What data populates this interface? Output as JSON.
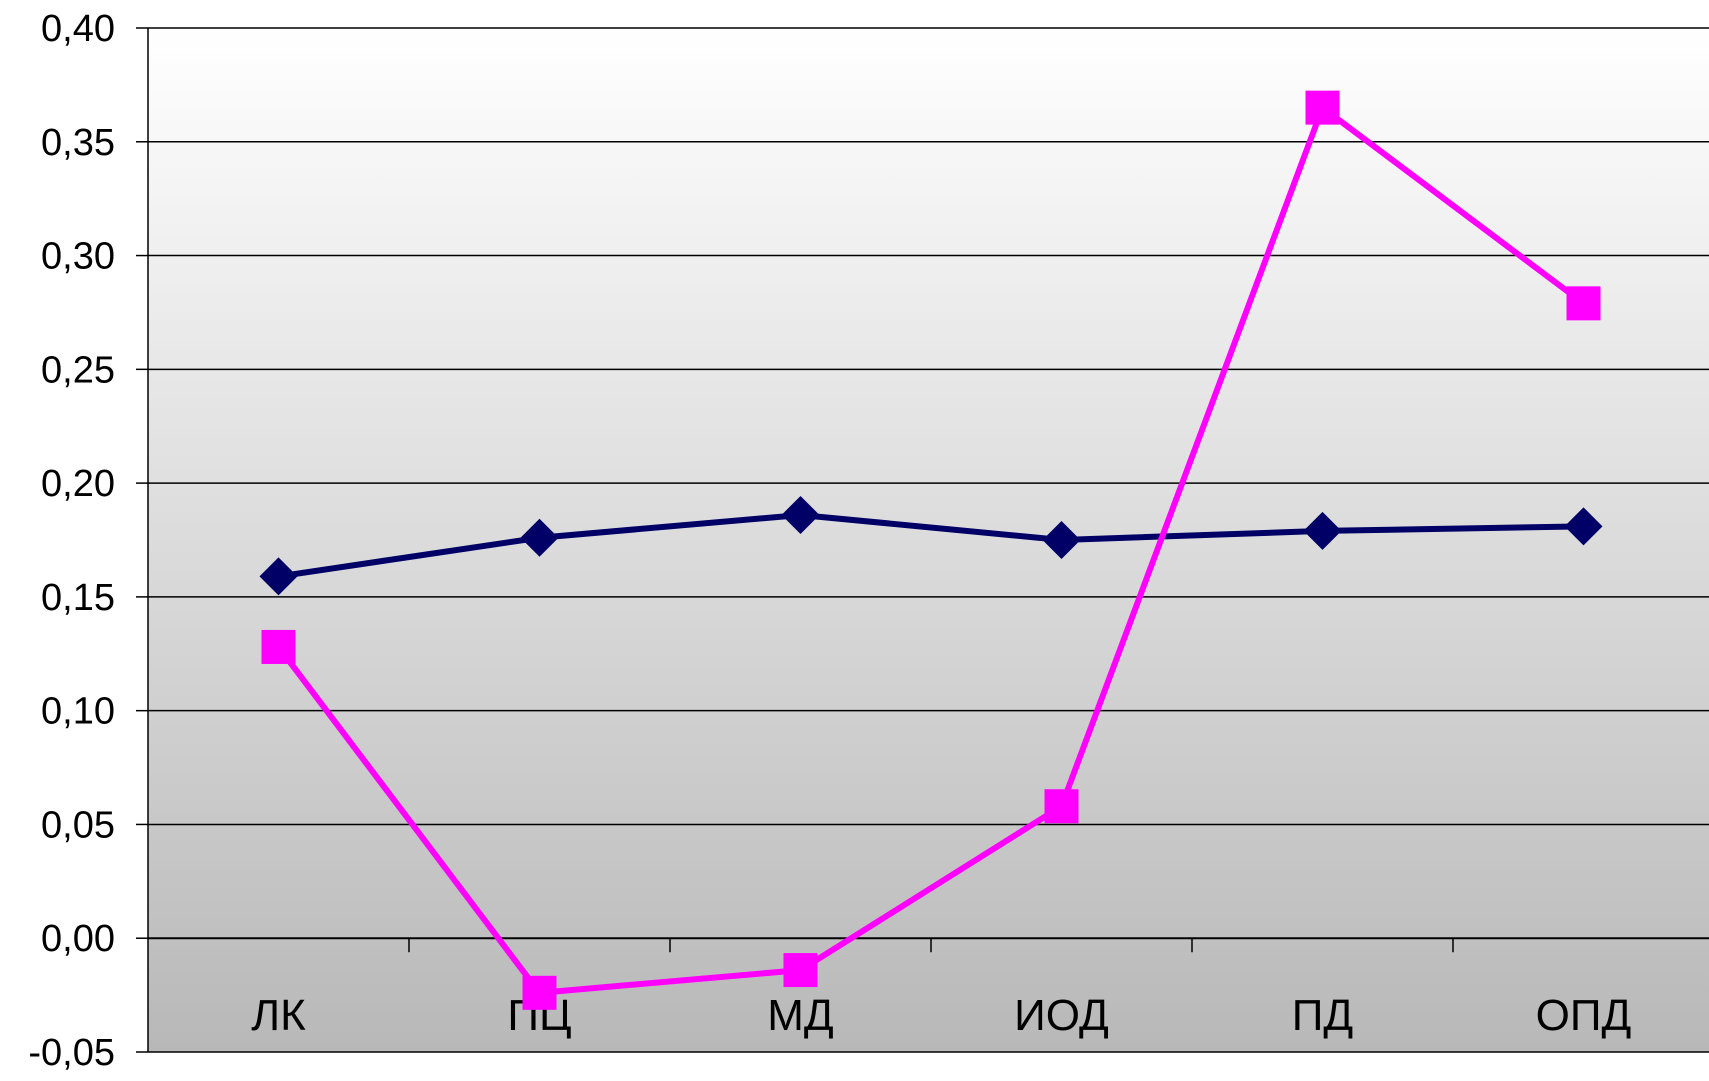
{
  "chart_data": {
    "type": "line",
    "title": "",
    "xlabel": "",
    "ylabel": "",
    "categories": [
      "ЛК",
      "ПЦ",
      "МД",
      "ИОД",
      "ПД",
      "ОПД"
    ],
    "ylim": [
      -0.05,
      0.4
    ],
    "yticks": [
      "-0,05",
      "0,00",
      "0,05",
      "0,10",
      "0,15",
      "0,20",
      "0,25",
      "0,30",
      "0,35",
      "0,40"
    ],
    "grid": true,
    "legend": "none",
    "series": [
      {
        "marker": "diamond",
        "color": "#000066",
        "values": [
          0.159,
          0.176,
          0.186,
          0.175,
          0.179,
          0.181
        ]
      },
      {
        "marker": "square",
        "color": "#ff00ff",
        "values": [
          0.128,
          -0.024,
          -0.014,
          0.058,
          0.365,
          0.279
        ]
      }
    ]
  }
}
